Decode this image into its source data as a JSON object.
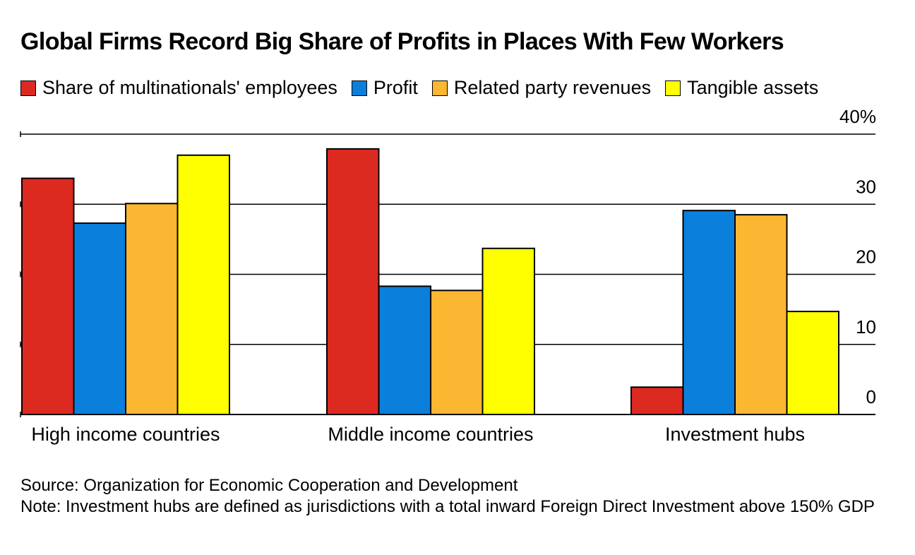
{
  "title": "Global Firms Record Big Share of Profits in Places With Few Workers",
  "legend": [
    {
      "label": "Share of multinationals' employees",
      "color": "#DD2A20"
    },
    {
      "label": "Profit",
      "color": "#0A7FDB"
    },
    {
      "label": "Related party revenues",
      "color": "#FBB731"
    },
    {
      "label": "Tangible assets",
      "color": "#FFFF00"
    }
  ],
  "chart_data": {
    "type": "bar",
    "categories": [
      "High income countries",
      "Middle income countries",
      "Investment hubs"
    ],
    "series": [
      {
        "name": "Share of multinationals' employees",
        "color": "#DD2A20",
        "values": [
          33.7,
          37.9,
          3.9
        ]
      },
      {
        "name": "Profit",
        "color": "#0A7FDB",
        "values": [
          27.3,
          18.3,
          29.1
        ]
      },
      {
        "name": "Related party revenues",
        "color": "#FBB731",
        "values": [
          30.1,
          17.7,
          28.5
        ]
      },
      {
        "name": "Tangible assets",
        "color": "#FFFF00",
        "values": [
          37.0,
          23.7,
          14.7
        ]
      }
    ],
    "ylim": [
      0,
      40
    ],
    "yticks": [
      0,
      10,
      20,
      30,
      40
    ],
    "ytick_labels": [
      "0",
      "10",
      "20",
      "30",
      "40%"
    ],
    "ylabel": "",
    "xlabel": "",
    "grid": true
  },
  "footer": {
    "source": "Source: Organization for Economic Cooperation and Development",
    "note": "Note: Investment hubs are defined as jurisdictions with a total inward Foreign Direct Investment above 150% GDP"
  }
}
